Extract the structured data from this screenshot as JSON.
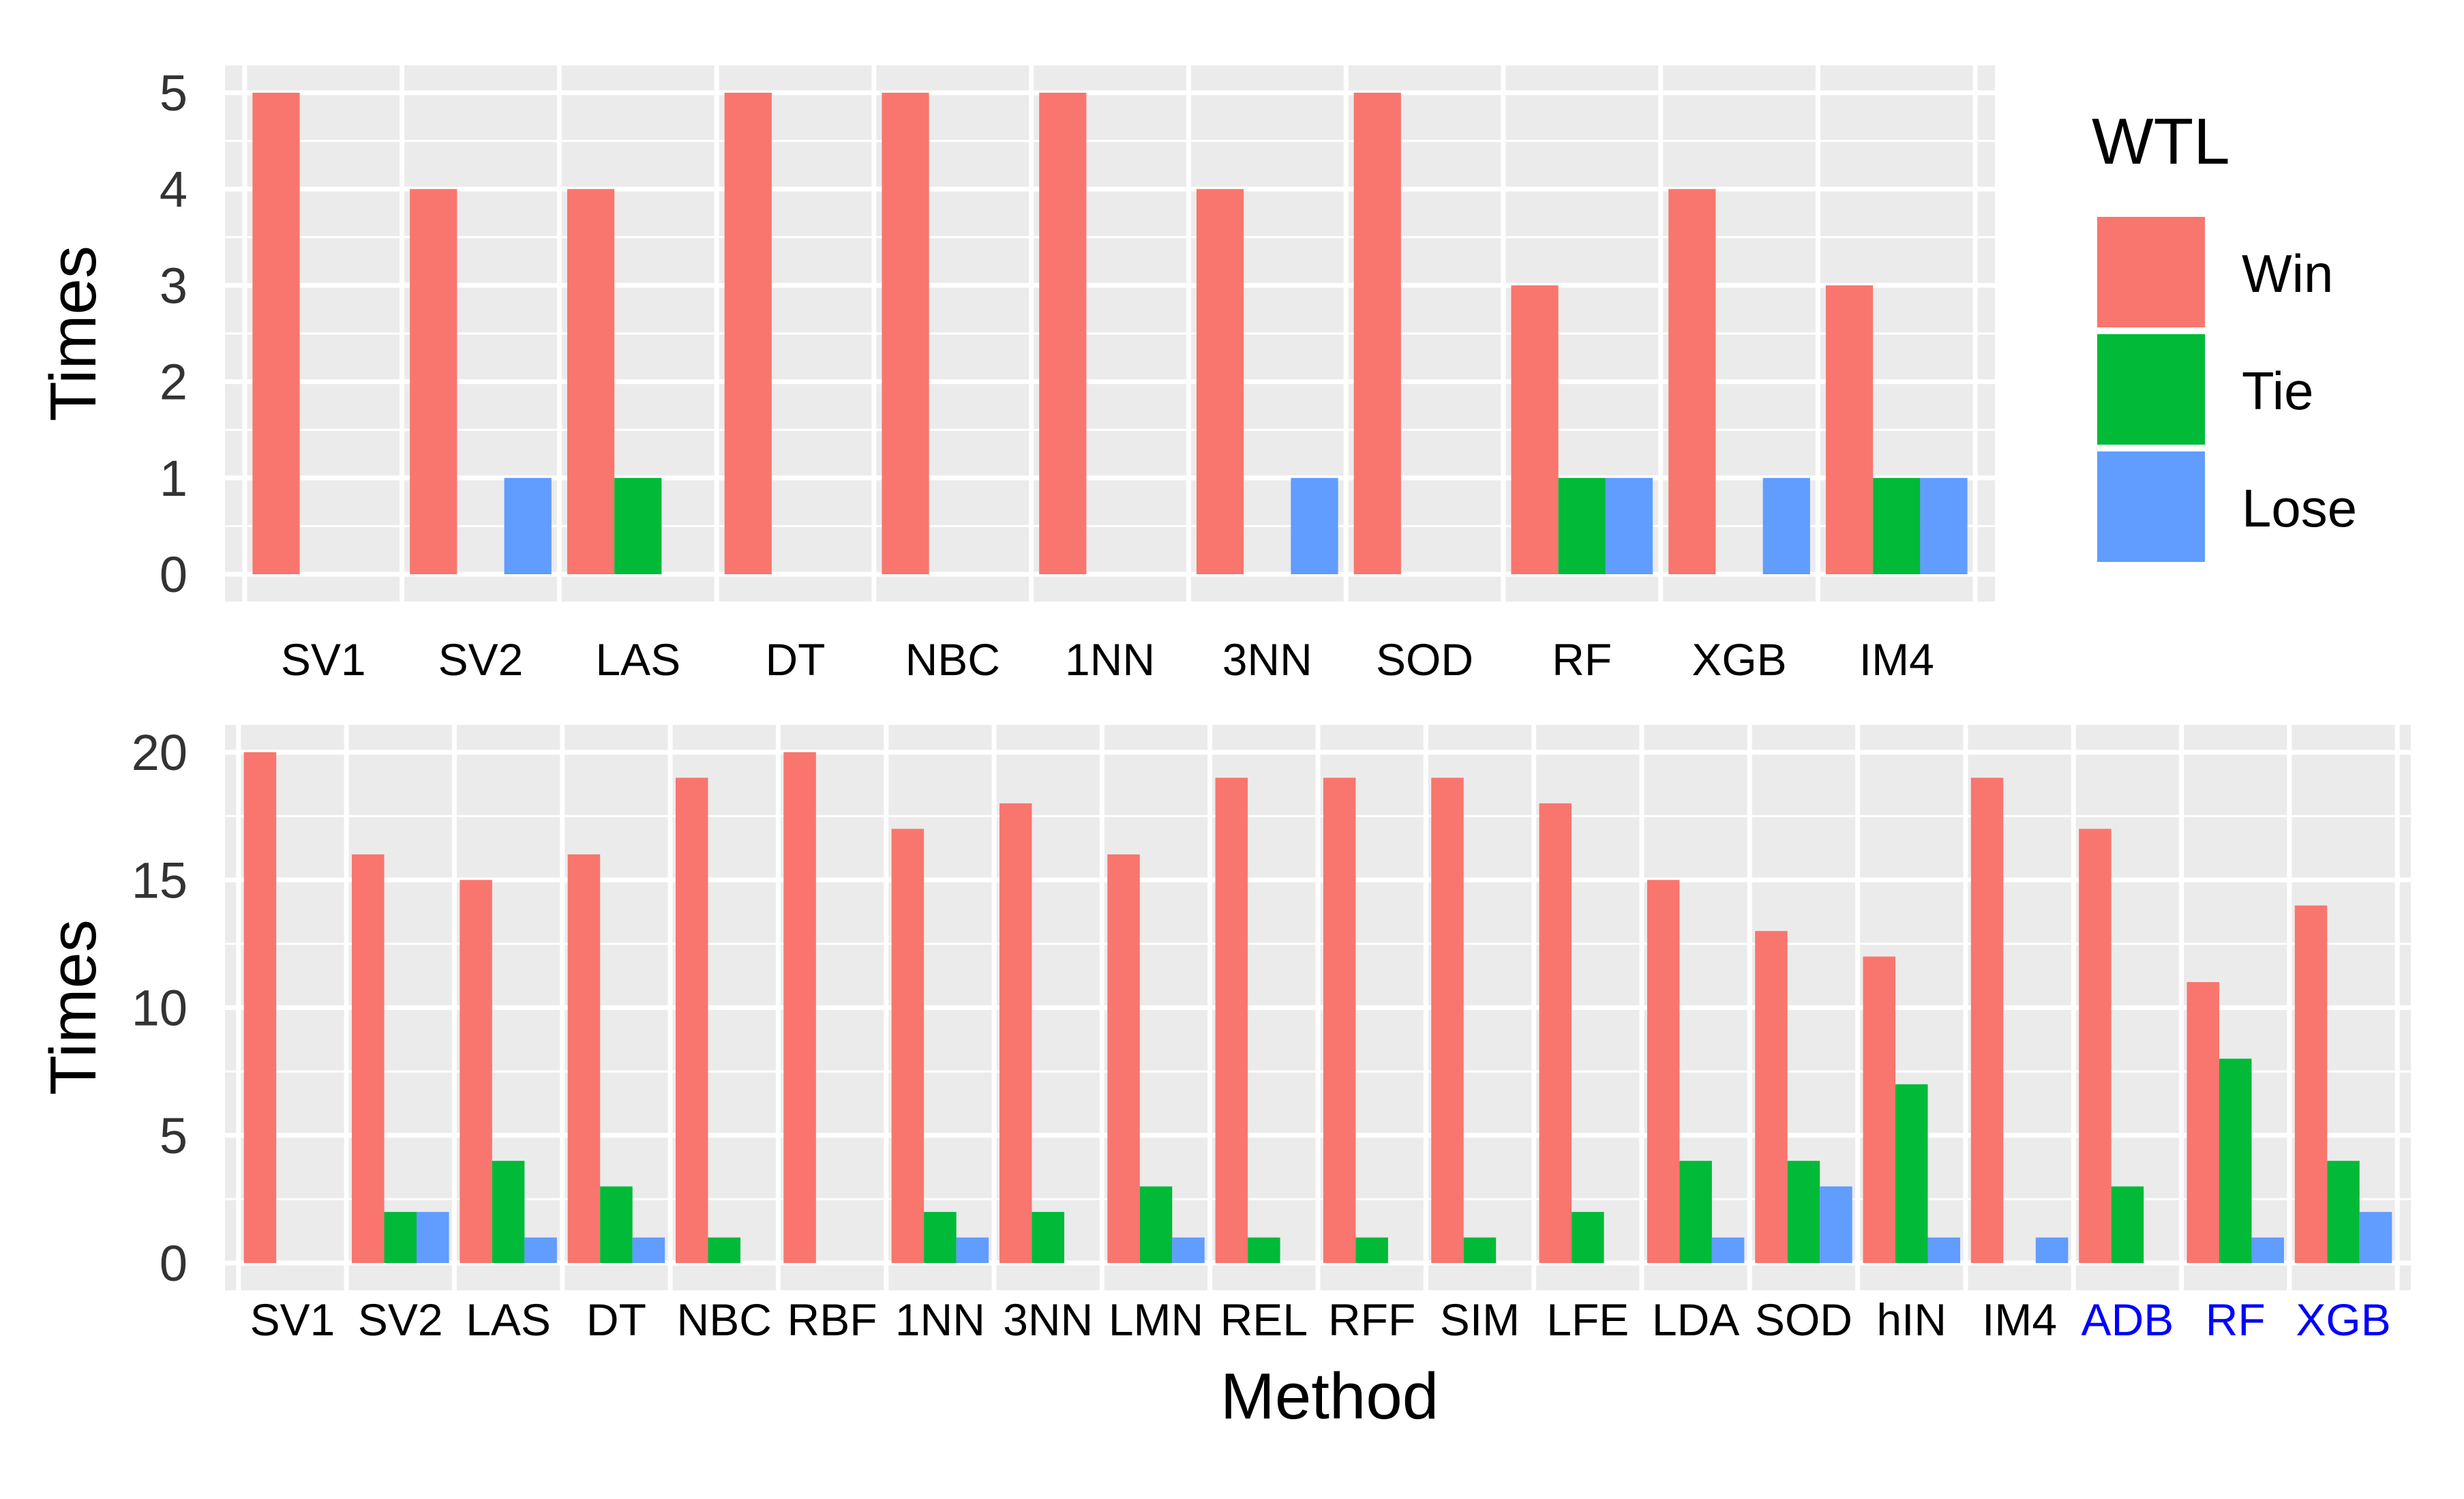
{
  "legend": {
    "title": "WTL",
    "entries": [
      {
        "label": "Win",
        "color": "#F8766D"
      },
      {
        "label": "Tie",
        "color": "#00BA38"
      },
      {
        "label": "Lose",
        "color": "#619CFF"
      }
    ]
  },
  "colors": {
    "panel_bg": "#EBEBEB",
    "grid": "#FFFFFF",
    "highlight_label": "#0000FF",
    "text": "#000000",
    "tick_text": "#333333"
  },
  "chart_data": [
    {
      "type": "bar",
      "title": "",
      "xlabel": "",
      "ylabel": "Times",
      "ylim": [
        0,
        5
      ],
      "yticks": [
        "0",
        "1",
        "2",
        "3",
        "4",
        "5"
      ],
      "categories": [
        "SV1",
        "SV2",
        "LAS",
        "DT",
        "NBC",
        "1NN",
        "3NN",
        "SOD",
        "RF",
        "XGB",
        "IM4"
      ],
      "highlighted": [],
      "series": [
        {
          "name": "Win",
          "values": [
            5,
            4,
            4,
            5,
            5,
            5,
            4,
            5,
            3,
            4,
            3
          ]
        },
        {
          "name": "Tie",
          "values": [
            0,
            0,
            1,
            0,
            0,
            0,
            0,
            0,
            1,
            0,
            1
          ]
        },
        {
          "name": "Lose",
          "values": [
            0,
            1,
            0,
            0,
            0,
            0,
            1,
            0,
            1,
            1,
            1
          ]
        }
      ]
    },
    {
      "type": "bar",
      "title": "",
      "xlabel": "Method",
      "ylabel": "Times",
      "ylim": [
        0,
        20
      ],
      "yticks": [
        "0",
        "5",
        "10",
        "15",
        "20"
      ],
      "categories": [
        "SV1",
        "SV2",
        "LAS",
        "DT",
        "NBC",
        "RBF",
        "1NN",
        "3NN",
        "LMN",
        "REL",
        "RFF",
        "SIM",
        "LFE",
        "LDA",
        "SOD",
        "hIN",
        "IM4",
        "ADB",
        "RF",
        "XGB"
      ],
      "highlighted": [
        "ADB",
        "RF",
        "XGB"
      ],
      "series": [
        {
          "name": "Win",
          "values": [
            20,
            16,
            15,
            16,
            19,
            20,
            17,
            18,
            16,
            19,
            19,
            19,
            18,
            15,
            13,
            12,
            19,
            17,
            11,
            14
          ]
        },
        {
          "name": "Tie",
          "values": [
            0,
            2,
            4,
            3,
            1,
            0,
            2,
            2,
            3,
            1,
            1,
            1,
            2,
            4,
            4,
            7,
            0,
            3,
            8,
            4
          ]
        },
        {
          "name": "Lose",
          "values": [
            0,
            2,
            1,
            1,
            0,
            0,
            1,
            0,
            1,
            0,
            0,
            0,
            0,
            1,
            3,
            1,
            1,
            0,
            1,
            2
          ]
        }
      ]
    }
  ]
}
